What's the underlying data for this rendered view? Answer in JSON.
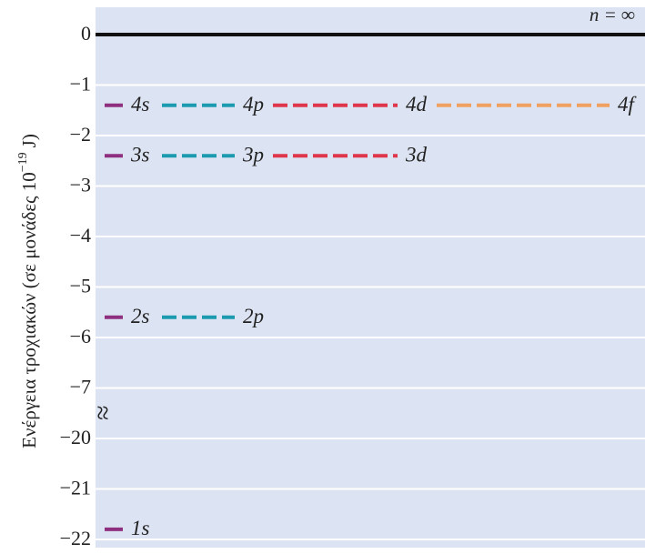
{
  "chart_data": {
    "type": "energy-levels",
    "ylabel": {
      "text": "Ενέργεια τροχιακών (σε μονάδες 10",
      "exponent": "−19",
      "unit": "J)"
    },
    "zero_label": "n = ∞",
    "ylim": [
      -22,
      0
    ],
    "ybreak": [
      -7,
      -20
    ],
    "yticks": [
      {
        "value": 0,
        "label": "0"
      },
      {
        "value": -1,
        "label": "−1"
      },
      {
        "value": -2,
        "label": "−2"
      },
      {
        "value": -3,
        "label": "−3"
      },
      {
        "value": -4,
        "label": "−4"
      },
      {
        "value": -5,
        "label": "−5"
      },
      {
        "value": -6,
        "label": "−6"
      },
      {
        "value": -7,
        "label": "−7"
      },
      {
        "value": -20,
        "label": "−20"
      },
      {
        "value": -21,
        "label": "−21"
      },
      {
        "value": -22,
        "label": "−22"
      }
    ],
    "colors": [
      "#8e2f7f",
      "#1c9bb0",
      "#e0364c",
      "#f0a060"
    ],
    "grid": true,
    "shells": [
      {
        "levels": [
          {
            "label": "1s",
            "value": -21.8
          }
        ]
      },
      {
        "levels": [
          {
            "label": "2s",
            "value": -5.6
          },
          {
            "label": "2p",
            "value": -5.6
          }
        ]
      },
      {
        "levels": [
          {
            "label": "3s",
            "value": -2.4
          },
          {
            "label": "3p",
            "value": -2.4
          },
          {
            "label": "3d",
            "value": -2.4
          }
        ]
      },
      {
        "levels": [
          {
            "label": "4s",
            "value": -1.4
          },
          {
            "label": "4p",
            "value": -1.4
          },
          {
            "label": "4d",
            "value": -1.4
          },
          {
            "label": "4f",
            "value": -1.4
          }
        ]
      }
    ]
  }
}
